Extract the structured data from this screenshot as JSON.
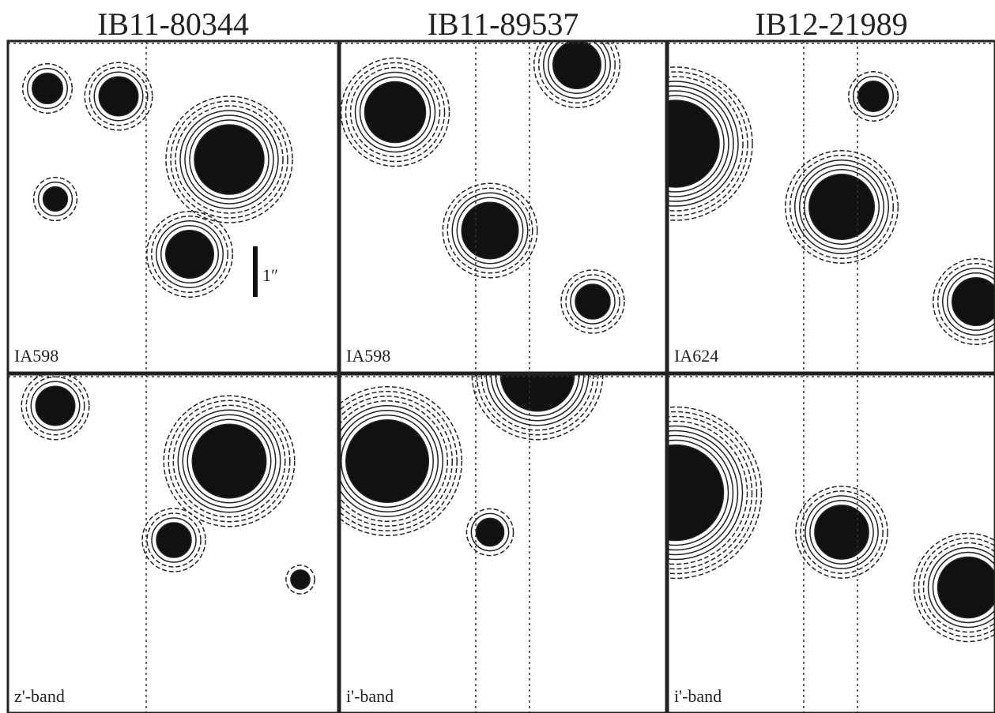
{
  "columns": [
    {
      "title": "IB11-80344",
      "panels": [
        {
          "label": "IA598"
        },
        {
          "label": "z'-band"
        }
      ]
    },
    {
      "title": "IB11-89537",
      "panels": [
        {
          "label": "IA598"
        },
        {
          "label": "i'-band"
        }
      ]
    },
    {
      "title": "IB12-21989",
      "panels": [
        {
          "label": "IA624"
        },
        {
          "label": "i'-band"
        }
      ]
    }
  ],
  "scale_bar": {
    "label": "1″"
  }
}
